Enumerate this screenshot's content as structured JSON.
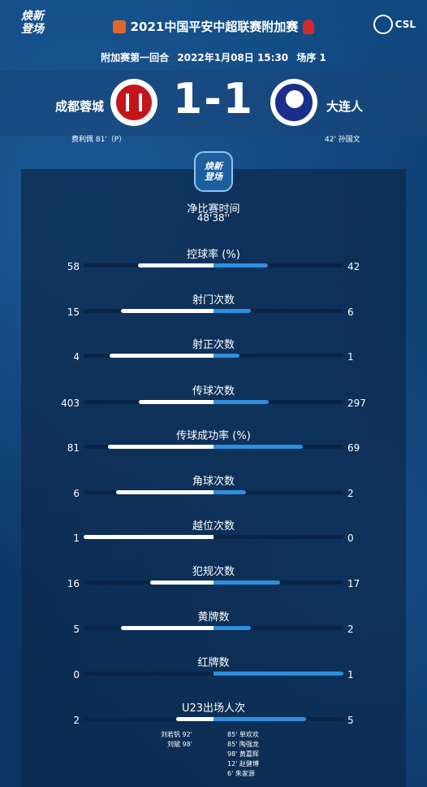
{
  "header": {
    "left_logo_line1": "焕新",
    "left_logo_line2": "登场",
    "title": "2021中国平安中超联赛附加赛",
    "csl": "CSL"
  },
  "match_info": {
    "round": "附加赛第一回合",
    "datetime": "2022年1月08日 15:30",
    "order": "场序 1"
  },
  "home": {
    "name": "成都蓉城",
    "scorer": "费利佩  81'（P）",
    "color": "#c4151c"
  },
  "away": {
    "name": "大连人",
    "scorer": "42'  孙国文",
    "color": "#1b2f8a"
  },
  "score": "1-1",
  "emblem": {
    "line1": "焕新",
    "line2": "登场"
  },
  "net_time": {
    "label": "净比赛时间",
    "value": "48'38''"
  },
  "stats": [
    {
      "label": "控球率 (%)",
      "home": "58",
      "away": "42",
      "home_frac": 0.58,
      "away_frac": 0.42
    },
    {
      "label": "射门次数",
      "home": "15",
      "away": "6",
      "home_frac": 0.71,
      "away_frac": 0.29
    },
    {
      "label": "射正次数",
      "home": "4",
      "away": "1",
      "home_frac": 0.8,
      "away_frac": 0.2
    },
    {
      "label": "传球次数",
      "home": "403",
      "away": "297",
      "home_frac": 0.576,
      "away_frac": 0.424
    },
    {
      "label": "传球成功率 (%)",
      "home": "81",
      "away": "69",
      "home_frac": 0.81,
      "away_frac": 0.69
    },
    {
      "label": "角球次数",
      "home": "6",
      "away": "2",
      "home_frac": 0.75,
      "away_frac": 0.25
    },
    {
      "label": "越位次数",
      "home": "1",
      "away": "0",
      "home_frac": 1.0,
      "away_frac": 0.0
    },
    {
      "label": "犯规次数",
      "home": "16",
      "away": "17",
      "home_frac": 0.485,
      "away_frac": 0.515
    },
    {
      "label": "黄牌数",
      "home": "5",
      "away": "2",
      "home_frac": 0.71,
      "away_frac": 0.29
    },
    {
      "label": "红牌数",
      "home": "0",
      "away": "1",
      "home_frac": 0.0,
      "away_frac": 1.0
    },
    {
      "label": "U23出场人次",
      "home": "2",
      "away": "5",
      "home_frac": 0.29,
      "away_frac": 0.71
    }
  ],
  "u23_home": [
    "刘若钒  92'",
    "刘斌  98'"
  ],
  "u23_away": [
    "85'  单欢欢",
    "85'  陶强龙",
    "98'  黄嘉辉",
    "12'  赵健博",
    "6'  朱家源"
  ],
  "colors": {
    "home_bar": "#ffffff",
    "away_bar": "#2e8fe0"
  }
}
